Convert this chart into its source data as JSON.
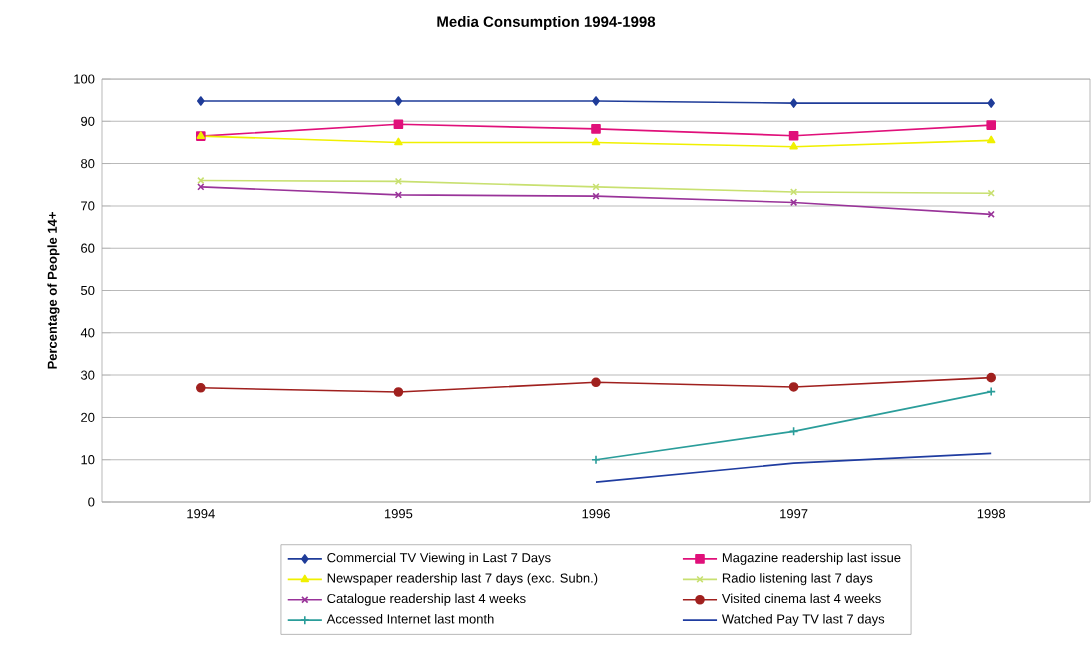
{
  "chart_data": {
    "type": "line",
    "title": "Media Consumption 1994-1998",
    "ylabel": "Percentage of People 14+",
    "categories": [
      "1994",
      "1995",
      "1996",
      "1997",
      "1998"
    ],
    "series": [
      {
        "name": "Commercial TV Viewing in Last 7 Days",
        "color": "#1f3c99",
        "marker": "diamond",
        "values": [
          94.8,
          94.8,
          94.8,
          94.3,
          94.3
        ]
      },
      {
        "name": "Magazine readership last issue",
        "color": "#e0107a",
        "marker": "square",
        "values": [
          86.5,
          89.3,
          88.2,
          86.6,
          89.1
        ]
      },
      {
        "name": "Newspaper readership last 7 days (exc. Subn.)",
        "color": "#f0f000",
        "marker": "triangle",
        "values": [
          86.5,
          85.0,
          85.0,
          84.0,
          85.5
        ]
      },
      {
        "name": "Radio listening last 7 days",
        "color": "#c8e070",
        "marker": "cross",
        "values": [
          76.0,
          75.8,
          74.5,
          73.3,
          73.0
        ]
      },
      {
        "name": "Catalogue readership last 4 weeks",
        "color": "#993399",
        "marker": "cross",
        "values": [
          74.5,
          72.6,
          72.3,
          70.8,
          68.0
        ]
      },
      {
        "name": "Visited cinema last 4 weeks",
        "color": "#a0201e",
        "marker": "circle",
        "values": [
          27.0,
          26.0,
          28.3,
          27.2,
          29.4
        ]
      },
      {
        "name": "Accessed Internet last month",
        "color": "#2a9d9a",
        "marker": "plus",
        "values": [
          null,
          null,
          10.0,
          16.7,
          26.1
        ]
      },
      {
        "name": "Watched Pay TV last 7 days",
        "color": "#1f3ca0",
        "marker": "none",
        "values": [
          null,
          null,
          4.7,
          9.2,
          11.5
        ]
      }
    ],
    "ylim": [
      0,
      100
    ],
    "yticks": [
      0,
      10,
      20,
      30,
      40,
      50,
      60,
      70,
      80,
      90,
      100
    ],
    "grid": "y",
    "legend": "bottom"
  }
}
